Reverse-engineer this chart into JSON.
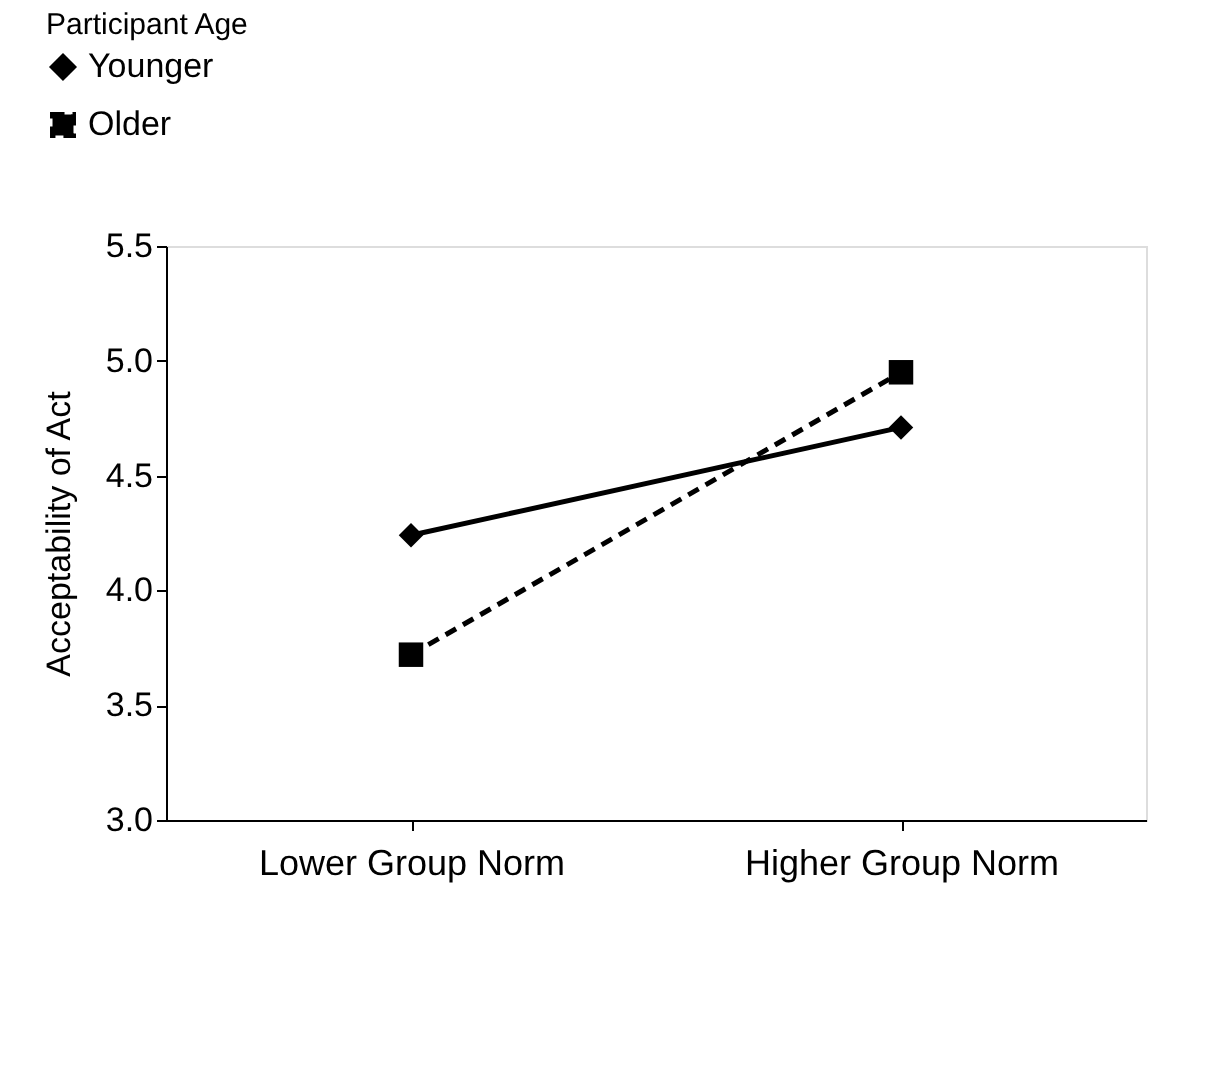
{
  "chart_data": {
    "type": "line",
    "ylabel": "Acceptability of Act",
    "legend_title": "Participant Age",
    "legend": "top left",
    "categories": [
      "Lower Group Norm",
      "Higher Group Norm"
    ],
    "series": [
      {
        "name": "Younger",
        "color": "#000000",
        "values": [
          4.24,
          4.71
        ],
        "marker": "diamond",
        "line_style": "solid"
      },
      {
        "name": "Older",
        "color": "#000000",
        "values": [
          3.72,
          4.95
        ],
        "marker": "square",
        "line_style": "dashed"
      }
    ],
    "ylim": [
      3.0,
      5.5
    ],
    "yticks": [
      {
        "value": 3,
        "label": "3.0"
      },
      3.5,
      {
        "value": 4,
        "label": "4.0"
      },
      4.5,
      {
        "value": 5,
        "label": "5.0"
      },
      5.5
    ],
    "grid": false
  }
}
